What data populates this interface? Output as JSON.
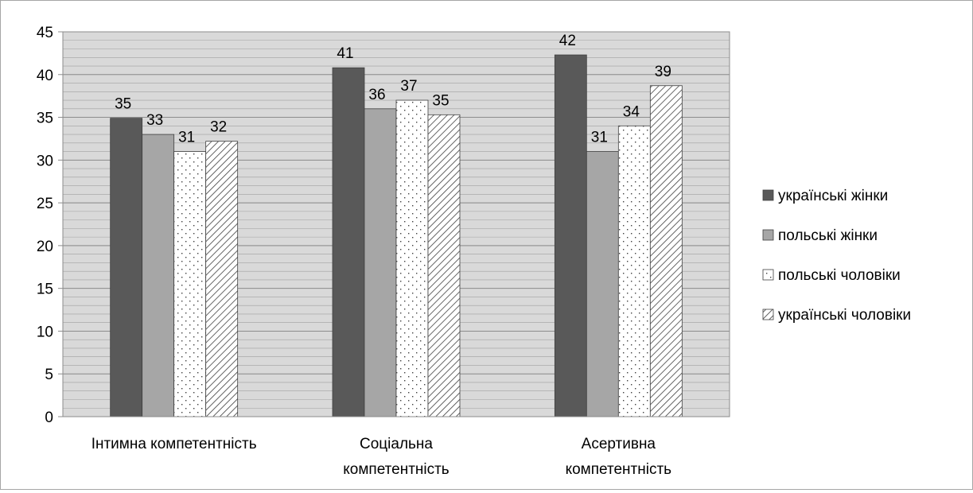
{
  "chart_data": {
    "type": "bar",
    "title": "",
    "xlabel": "",
    "ylabel": "",
    "categories": [
      [
        "Інтимна компетентність"
      ],
      [
        "Соціальна",
        "компетентність"
      ],
      [
        "Асертивна",
        "компетентність"
      ]
    ],
    "series": [
      {
        "name": "українські жінки",
        "values": [
          35,
          41,
          42
        ],
        "plotted": [
          34.9,
          40.8,
          42.3
        ],
        "fill": "dark"
      },
      {
        "name": "польські жінки",
        "values": [
          33,
          36,
          31
        ],
        "plotted": [
          33.0,
          36.0,
          31.0
        ],
        "fill": "light"
      },
      {
        "name": "польські чоловіки",
        "values": [
          31,
          37,
          34
        ],
        "plotted": [
          31.0,
          37.0,
          34.0
        ],
        "fill": "dotted"
      },
      {
        "name": "українські чоловіки",
        "values": [
          32,
          35,
          39
        ],
        "plotted": [
          32.2,
          35.3,
          38.7
        ],
        "fill": "hatched"
      }
    ],
    "ylim": [
      0,
      45
    ],
    "yticks": [
      0,
      5,
      10,
      15,
      20,
      25,
      30,
      35,
      40,
      45
    ],
    "minor_gridlines_every": 1,
    "grid": true,
    "legend_position": "right",
    "colors": {
      "dark": "#595959",
      "light": "#a6a6a6",
      "plot_background": "#d9d9d9",
      "gridline": "#8c8c8c",
      "bar_border": "#404040"
    }
  }
}
